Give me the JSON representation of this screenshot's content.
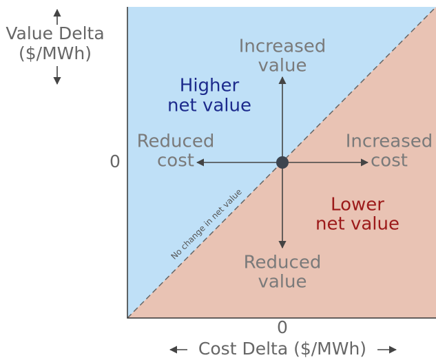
{
  "y_axis": {
    "label_lines": [
      "Value Delta",
      "($/MWh)"
    ],
    "zero": "0"
  },
  "x_axis": {
    "label": "Cost Delta ($/MWh)",
    "zero": "0"
  },
  "regions": {
    "upper": [
      "Higher",
      "net value"
    ],
    "lower": [
      "Lower",
      "net value"
    ]
  },
  "diagonal_label": "No change in net value",
  "directions": {
    "up": [
      "Increased",
      "value"
    ],
    "down": [
      "Reduced",
      "value"
    ],
    "left": [
      "Reduced",
      "cost"
    ],
    "right": [
      "Increased",
      "cost"
    ]
  }
}
